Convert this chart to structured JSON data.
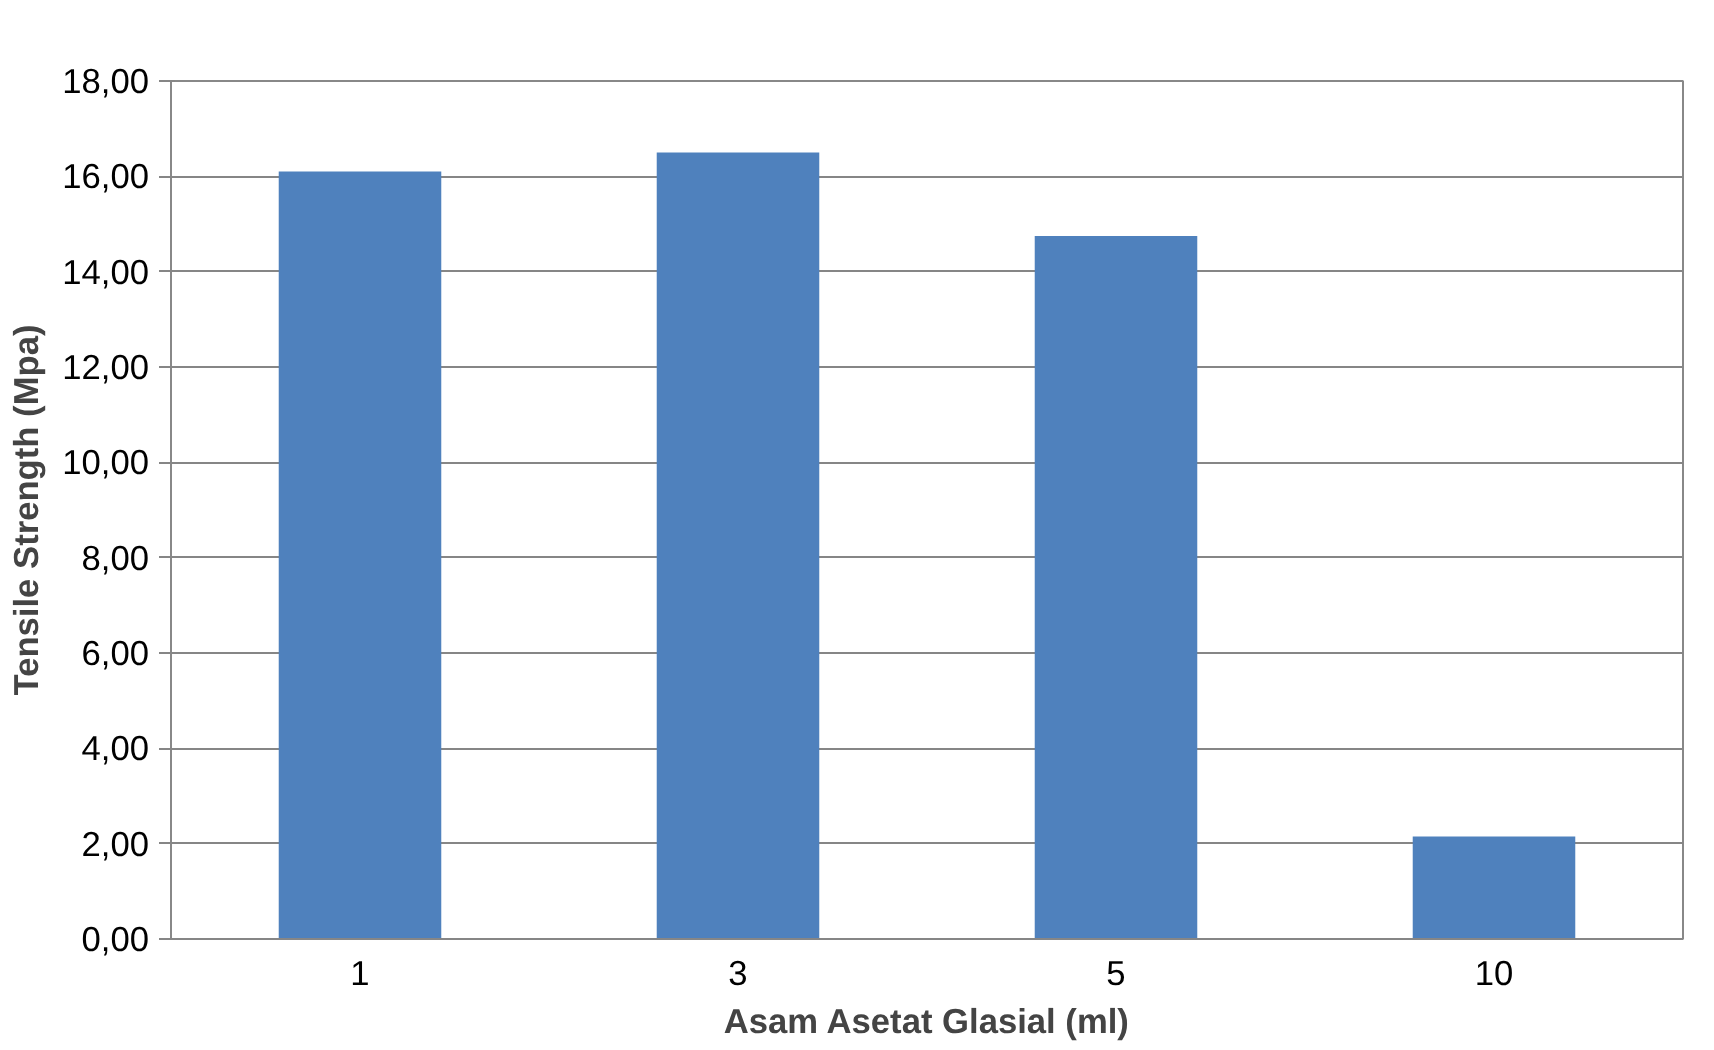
{
  "chart_data": {
    "type": "bar",
    "xlabel": "Asam Asetat Glasial (ml)",
    "ylabel": "Tensile Strength (Mpa)",
    "categories": [
      "1",
      "3",
      "5",
      "10"
    ],
    "values": [
      16.1,
      16.5,
      14.75,
      2.15
    ],
    "color": "#4f81bd",
    "ylim": [
      0,
      18
    ],
    "yticks": [
      {
        "value": 0,
        "label": "0,00"
      },
      {
        "value": 2,
        "label": "2,00"
      },
      {
        "value": 4,
        "label": "4,00"
      },
      {
        "value": 6,
        "label": "6,00"
      },
      {
        "value": 8,
        "label": "8,00"
      },
      {
        "value": 10,
        "label": "10,00"
      },
      {
        "value": 12,
        "label": "12,00"
      },
      {
        "value": 14,
        "label": "14,00"
      },
      {
        "value": 16,
        "label": "16,00"
      },
      {
        "value": 18,
        "label": "18,00"
      }
    ],
    "grid": "y"
  }
}
